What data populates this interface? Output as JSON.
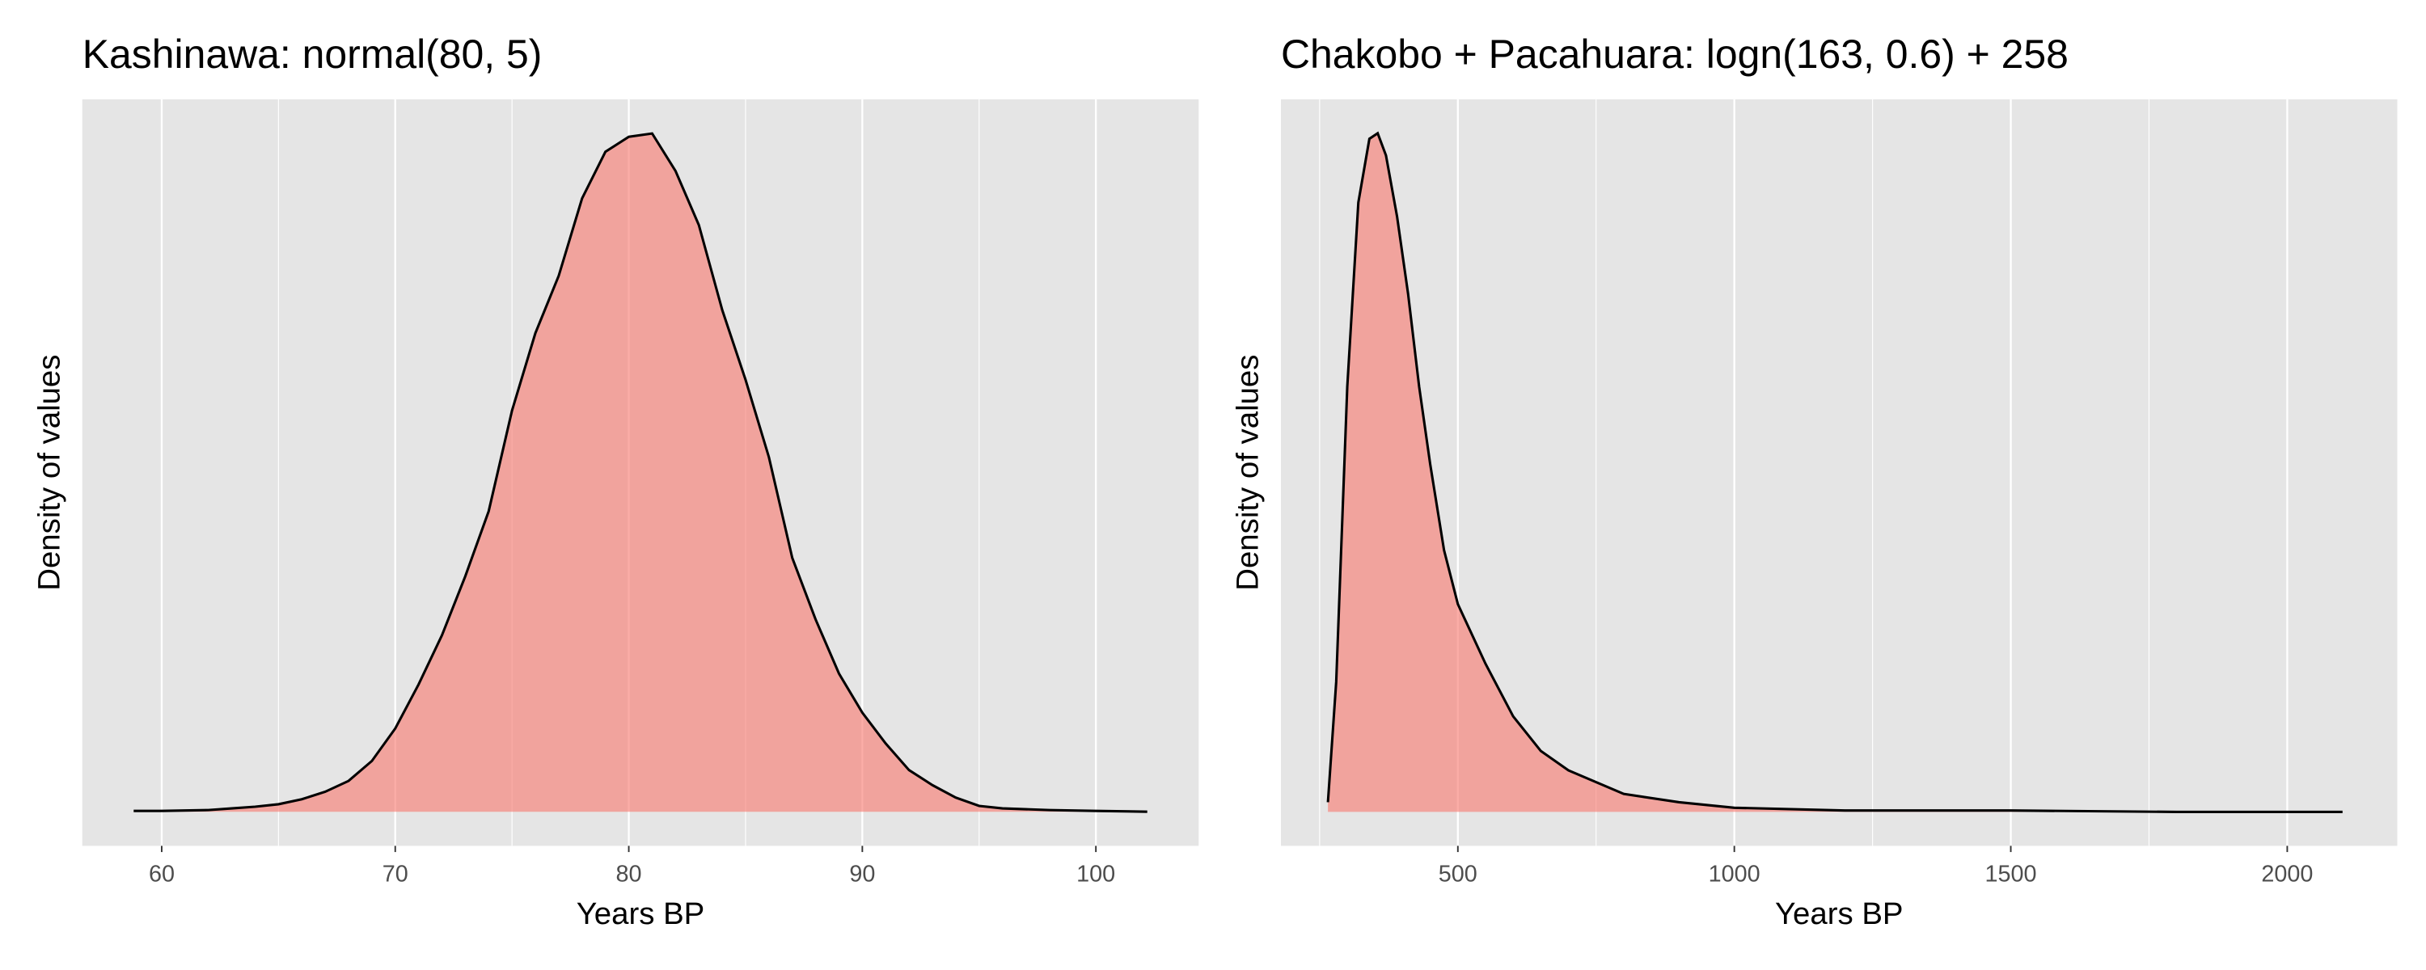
{
  "chart_data": [
    {
      "type": "density",
      "title": "Kashinawa: normal(80, 5)",
      "x_label": "Years BP",
      "y_label": "Density of values",
      "color": "#F8766D",
      "line_color": "#000000",
      "grid": true,
      "xlim": [
        56.6,
        104.4
      ],
      "ylim": [
        -0.0041,
        0.0856
      ],
      "xticks": [
        60,
        70,
        80,
        90,
        100
      ],
      "xminorticks": [
        65,
        75,
        85,
        95
      ],
      "x": [
        58.8,
        60,
        62,
        63,
        64,
        65,
        66,
        67,
        68,
        69,
        70,
        71,
        72,
        73,
        74,
        75,
        76,
        77,
        78,
        79,
        80,
        81,
        82,
        83,
        84,
        85,
        86,
        87,
        88,
        89,
        90,
        91,
        92,
        93,
        94,
        95,
        96,
        98,
        100,
        102.2
      ],
      "values": [
        0.0001,
        0.0001,
        0.0002,
        0.0004,
        0.0006,
        0.0009,
        0.0015,
        0.0024,
        0.0037,
        0.0061,
        0.01,
        0.0153,
        0.0212,
        0.0283,
        0.0361,
        0.0482,
        0.0575,
        0.0644,
        0.0737,
        0.0793,
        0.0811,
        0.0815,
        0.077,
        0.0705,
        0.0603,
        0.0519,
        0.0426,
        0.0305,
        0.0231,
        0.0166,
        0.0119,
        0.0082,
        0.005,
        0.0032,
        0.0017,
        0.0007,
        0.0004,
        0.0002,
        0.0001,
        0
      ]
    },
    {
      "type": "density",
      "title": "Chakobo + Pacahuara: logn(163, 0.6) + 258",
      "x_label": "Years BP",
      "y_label": "Density of values",
      "color": "#F8766D",
      "line_color": "#000000",
      "grid": true,
      "xlim": [
        180,
        2199
      ],
      "ylim": [
        -0.000245,
        0.005145
      ],
      "xticks": [
        500,
        1000,
        1500,
        2000
      ],
      "xminorticks": [
        250,
        750,
        1250,
        1750
      ],
      "x": [
        265,
        280,
        300,
        320,
        340,
        355,
        370,
        390,
        410,
        430,
        450,
        475,
        500,
        550,
        600,
        650,
        700,
        800,
        900,
        1000,
        1200,
        1500,
        1800,
        2100
      ],
      "values": [
        7e-05,
        0.00094,
        0.00307,
        0.0044,
        0.00486,
        0.0049,
        0.00474,
        0.0043,
        0.00374,
        0.00307,
        0.00251,
        0.00189,
        0.0015,
        0.00107,
        0.00069,
        0.00044,
        0.0003,
        0.00013,
        7e-05,
        3e-05,
        1e-05,
        1e-05,
        0,
        0
      ]
    }
  ]
}
